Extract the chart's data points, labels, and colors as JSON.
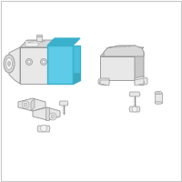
{
  "background_color": "#ffffff",
  "border_color": "#c8c8c8",
  "highlight_color": "#5ecce8",
  "highlight_top": "#3ab0cc",
  "highlight_right": "#4bbedd",
  "line_color": "#909090",
  "fill_body": "#e8e8e8",
  "fill_top": "#d8d8d8",
  "fill_dark": "#c8c8c8",
  "fill_bg": "#f2f2f2"
}
